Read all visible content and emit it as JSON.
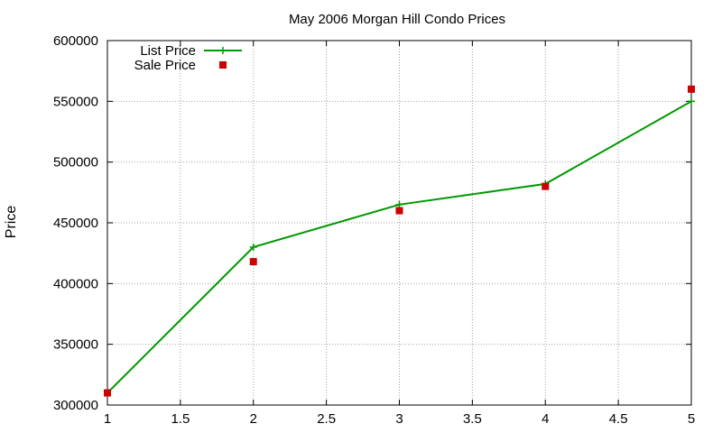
{
  "chart_data": {
    "type": "line",
    "title": "May 2006 Morgan Hill Condo Prices",
    "xlabel": "",
    "ylabel": "Price",
    "xlim": [
      1,
      5
    ],
    "ylim": [
      300000,
      600000
    ],
    "x_ticks": [
      "1",
      "1.5",
      "2",
      "2.5",
      "3",
      "3.5",
      "4",
      "4.5",
      "5"
    ],
    "y_ticks": [
      "300000",
      "350000",
      "400000",
      "450000",
      "500000",
      "550000",
      "600000"
    ],
    "grid": true,
    "legend_position": "top-left",
    "series": [
      {
        "name": "List Price",
        "style": "line-with-plus-markers",
        "color": "#009900",
        "x": [
          1,
          2,
          3,
          4,
          5
        ],
        "y": [
          310000,
          430000,
          465000,
          482000,
          550000
        ]
      },
      {
        "name": "Sale Price",
        "style": "square-points",
        "color": "#cc0000",
        "x": [
          1,
          2,
          3,
          4,
          5
        ],
        "y": [
          310000,
          418000,
          460000,
          480000,
          560000
        ]
      }
    ]
  }
}
